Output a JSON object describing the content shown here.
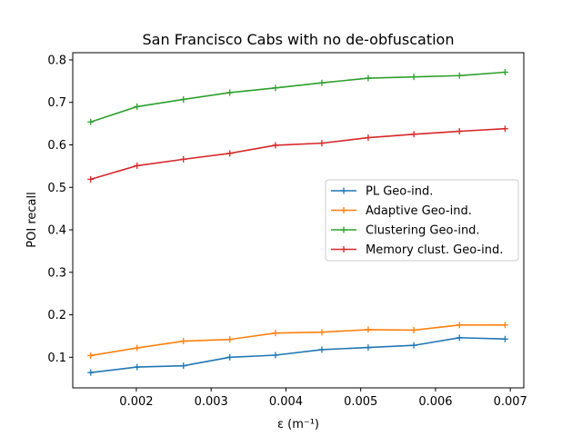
{
  "chart_data": {
    "type": "line",
    "title": "San Francisco Cabs with no de-obfuscation",
    "xlabel": "ε (m⁻¹)",
    "ylabel": "POI recall",
    "xlim": [
      0.00115,
      0.00718
    ],
    "ylim": [
      0.028,
      0.817
    ],
    "x_ticks": [
      0.002,
      0.003,
      0.004,
      0.005,
      0.006,
      0.007
    ],
    "x_tick_labels": [
      "0.002",
      "0.003",
      "0.004",
      "0.005",
      "0.006",
      "0.007"
    ],
    "y_ticks": [
      0.1,
      0.2,
      0.3,
      0.4,
      0.5,
      0.6,
      0.7,
      0.8
    ],
    "y_tick_labels": [
      "0.1",
      "0.2",
      "0.3",
      "0.4",
      "0.5",
      "0.6",
      "0.7",
      "0.8"
    ],
    "grid": false,
    "legend_position": "center-right",
    "x": [
      0.00139,
      0.00201,
      0.00263,
      0.00325,
      0.00386,
      0.00448,
      0.0051,
      0.00571,
      0.00632,
      0.00693
    ],
    "series": [
      {
        "name": "PL Geo-ind.",
        "color": "#1f77b4",
        "values": [
          0.064,
          0.077,
          0.08,
          0.1,
          0.105,
          0.118,
          0.123,
          0.128,
          0.146,
          0.143
        ]
      },
      {
        "name": "Adaptive Geo-ind.",
        "color": "#ff7f0e",
        "values": [
          0.104,
          0.122,
          0.138,
          0.142,
          0.157,
          0.159,
          0.165,
          0.164,
          0.176,
          0.176
        ]
      },
      {
        "name": "Clustering Geo-ind.",
        "color": "#2ca02c",
        "values": [
          0.654,
          0.69,
          0.707,
          0.723,
          0.734,
          0.746,
          0.757,
          0.76,
          0.763,
          0.771
        ]
      },
      {
        "name": "Memory clust. Geo-ind.",
        "color": "#d62728",
        "values": [
          0.519,
          0.551,
          0.566,
          0.58,
          0.599,
          0.604,
          0.617,
          0.625,
          0.632,
          0.638
        ]
      }
    ]
  }
}
